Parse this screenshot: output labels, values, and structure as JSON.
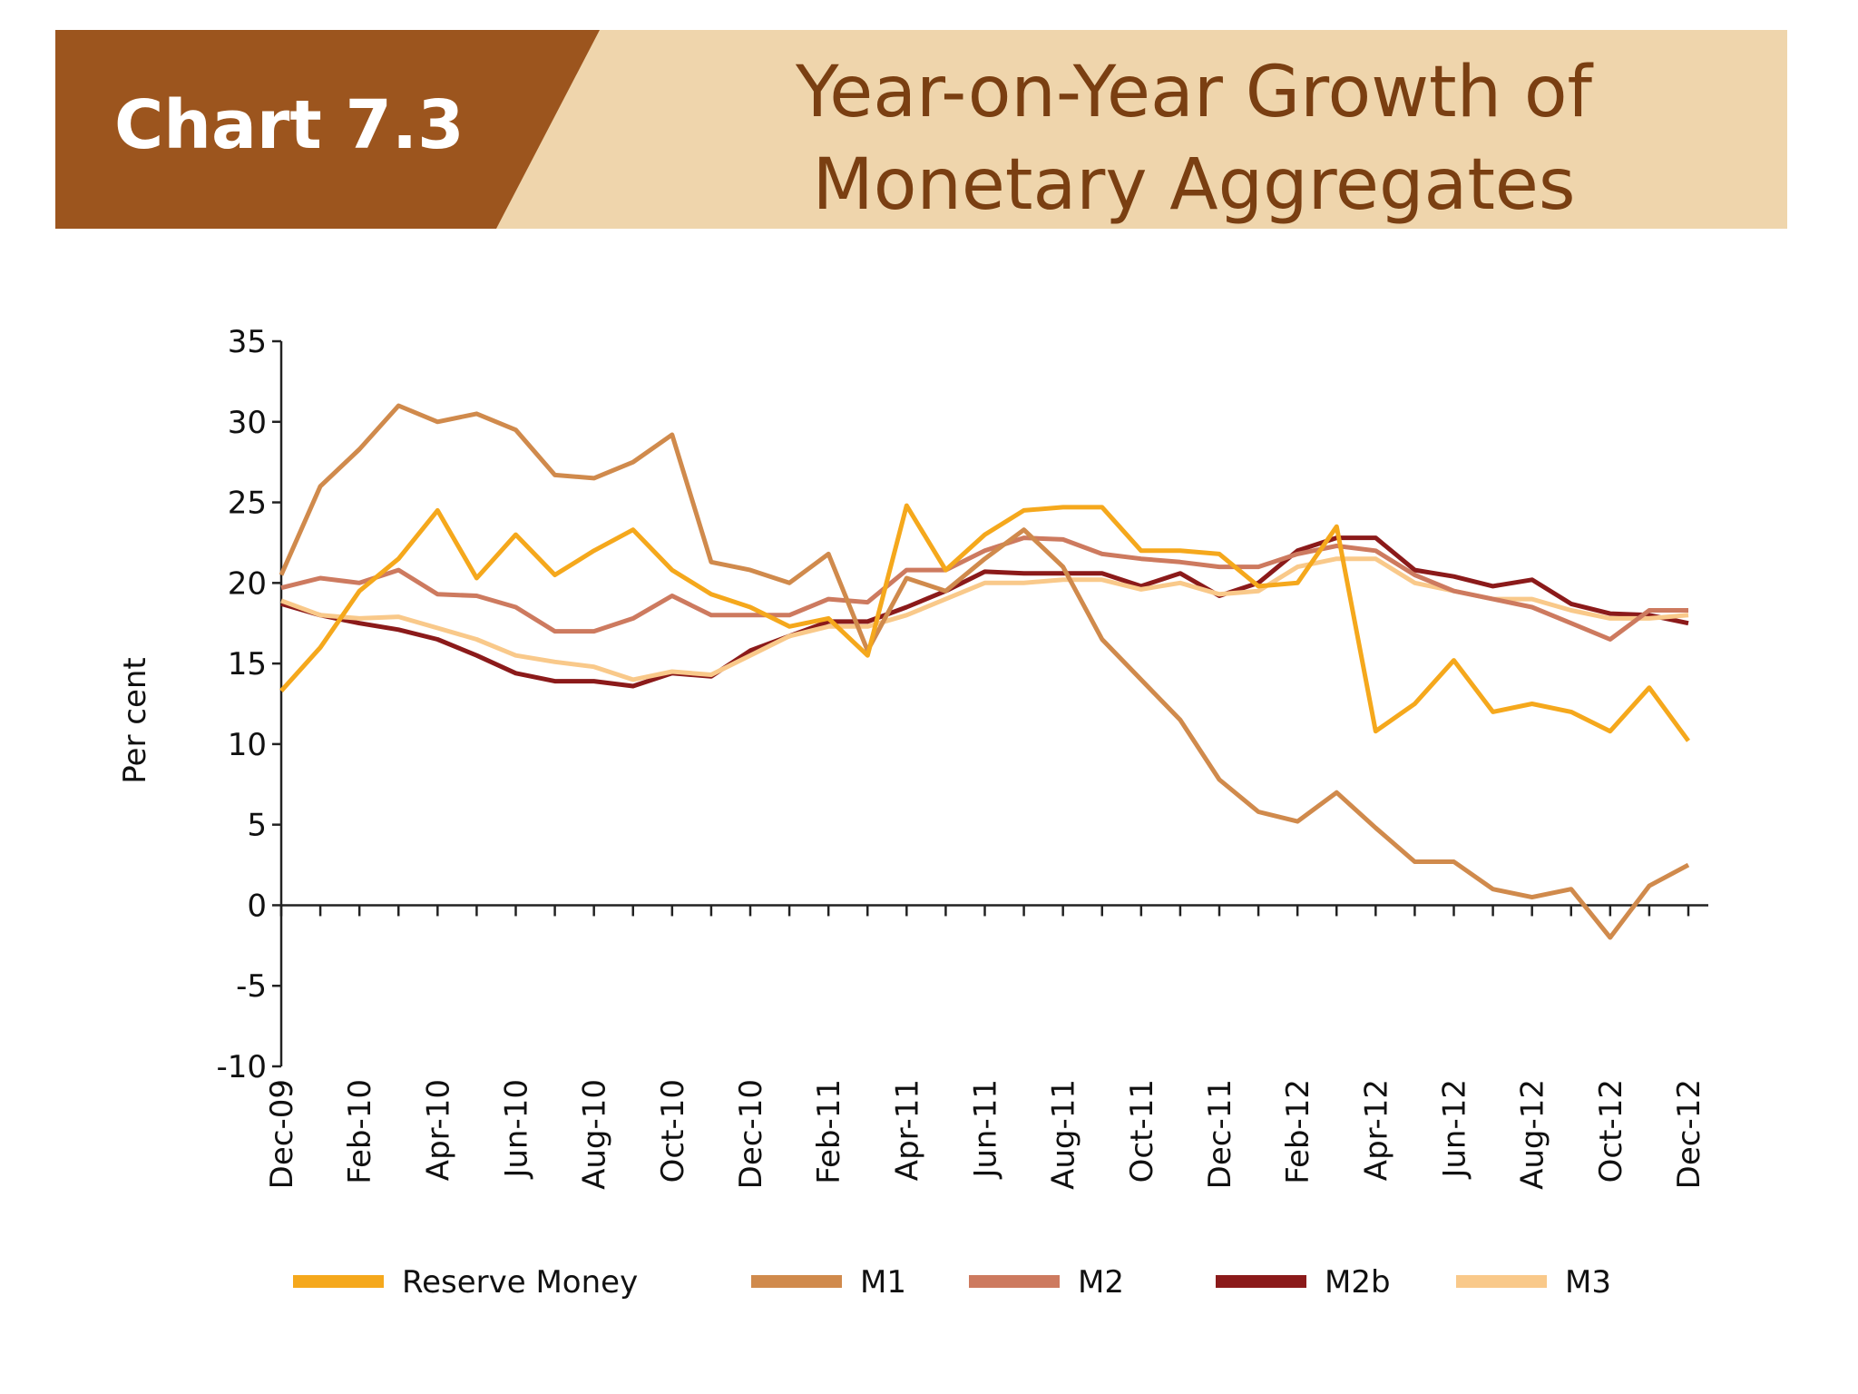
{
  "header": {
    "chart_number": "Chart 7.3"
  },
  "chart_data": {
    "type": "line",
    "title": "Year-on-Year Growth of Monetary Aggregates",
    "y_label": "Per cent",
    "categories": [
      "Dec-09",
      null,
      "Feb-10",
      null,
      "Apr-10",
      null,
      "Jun-10",
      null,
      "Aug-10",
      null,
      "Oct-10",
      null,
      "Dec-10",
      null,
      "Feb-11",
      null,
      "Apr-11",
      null,
      "Jun-11",
      null,
      "Aug-11",
      null,
      "Oct-11",
      null,
      "Dec-11",
      null,
      "Feb-12",
      null,
      "Apr-12",
      null,
      "Jun-12",
      null,
      "Aug-12",
      null,
      "Oct-12",
      null,
      "Dec-12"
    ],
    "series": [
      {
        "name": "Reserve Money",
        "color": "#f5a81c",
        "values": [
          13.3,
          16,
          19.5,
          21.5,
          24.5,
          20.3,
          23,
          20.5,
          22,
          23.3,
          20.8,
          19.3,
          18.5,
          17.3,
          17.8,
          15.5,
          24.8,
          20.8,
          23,
          24.5,
          24.7,
          24.7,
          22,
          22,
          21.8,
          19.8,
          20,
          23.5,
          10.8,
          12.5,
          15.2,
          12,
          12.5,
          12,
          10.8,
          13.5,
          10.2
        ]
      },
      {
        "name": "M1",
        "color": "#d08a4c",
        "values": [
          20.5,
          26,
          28.3,
          31,
          30,
          30.5,
          29.5,
          26.7,
          26.5,
          27.5,
          29.2,
          21.3,
          20.8,
          20,
          21.8,
          15.8,
          20.3,
          19.5,
          21.5,
          23.3,
          21,
          16.5,
          14,
          11.5,
          7.8,
          5.8,
          5.2,
          7,
          4.8,
          2.7,
          2.7,
          1,
          0.5,
          1,
          -2,
          1.2,
          2.5
        ]
      },
      {
        "name": "M2",
        "color": "#cd7a5f",
        "values": [
          19.7,
          20.3,
          20,
          20.8,
          19.3,
          19.2,
          18.5,
          17,
          17,
          17.8,
          19.2,
          18,
          18,
          18,
          19,
          18.8,
          20.8,
          20.8,
          22,
          22.8,
          22.7,
          21.8,
          21.5,
          21.3,
          21,
          21,
          21.8,
          22.3,
          22,
          20.5,
          19.5,
          19,
          18.5,
          17.5,
          16.5,
          18.3,
          18.3
        ]
      },
      {
        "name": "M2b",
        "color": "#8b1a1a",
        "values": [
          18.7,
          18,
          17.5,
          17.1,
          16.5,
          15.5,
          14.4,
          13.9,
          13.9,
          13.6,
          14.4,
          14.2,
          15.8,
          16.7,
          17.6,
          17.6,
          18.5,
          19.5,
          20.7,
          20.6,
          20.6,
          20.6,
          19.8,
          20.6,
          19.2,
          20,
          22,
          22.8,
          22.8,
          20.8,
          20.4,
          19.8,
          20.2,
          18.7,
          18.1,
          18,
          17.5
        ]
      },
      {
        "name": "M3",
        "color": "#f9c98a",
        "values": [
          18.9,
          18,
          17.8,
          17.9,
          17.2,
          16.5,
          15.5,
          15.1,
          14.8,
          14,
          14.5,
          14.3,
          15.5,
          16.7,
          17.3,
          17.3,
          18,
          19,
          20,
          20,
          20.2,
          20.2,
          19.6,
          20,
          19.3,
          19.5,
          21,
          21.5,
          21.5,
          20,
          19.5,
          19,
          19,
          18.3,
          17.8,
          17.8,
          18
        ]
      }
    ],
    "ylim": [
      -10,
      35
    ],
    "yticks": [
      -10,
      -5,
      0,
      5,
      10,
      15,
      20,
      25,
      30,
      35
    ],
    "grid": false
  }
}
